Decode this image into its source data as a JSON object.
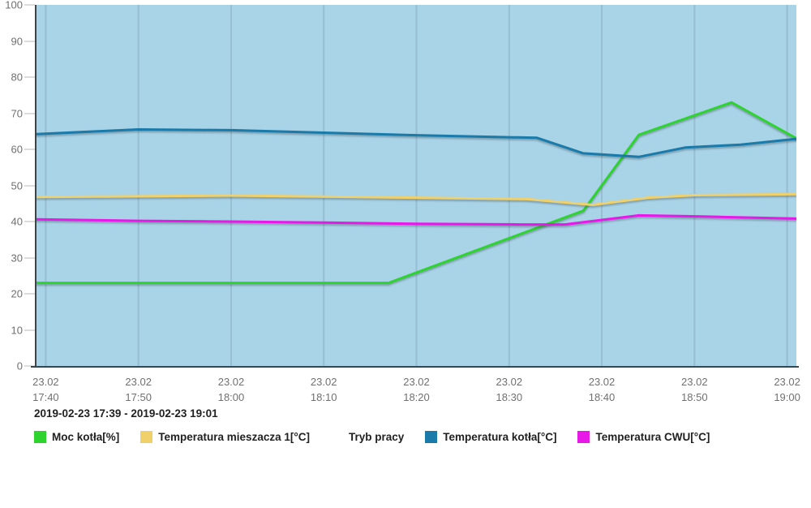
{
  "chart": {
    "subtitle_range": "2019-02-23 17:39 - 2019-02-23 19:01"
  },
  "chart_data": {
    "type": "line",
    "title": "",
    "xlabel": "",
    "ylabel": "",
    "x_start": "17:39",
    "x_end": "19:01",
    "x_unit": "minutes since 17:39",
    "x_total_minutes": 82,
    "ylim": [
      0,
      100
    ],
    "grid": "vertical-only",
    "legend_position": "bottom",
    "plot_bg": "#a9d3e7",
    "grid_color": "#97bed1",
    "axis_color": "#37474f",
    "tick_text_color": "#707070",
    "label_text_color": "#212121",
    "y_ticks": [
      0,
      10,
      20,
      30,
      40,
      50,
      60,
      70,
      80,
      90,
      100
    ],
    "x_ticks": [
      {
        "t": 1,
        "date": "23.02",
        "time": "17:40"
      },
      {
        "t": 11,
        "date": "23.02",
        "time": "17:50"
      },
      {
        "t": 21,
        "date": "23.02",
        "time": "18:00"
      },
      {
        "t": 31,
        "date": "23.02",
        "time": "18:10"
      },
      {
        "t": 41,
        "date": "23.02",
        "time": "18:20"
      },
      {
        "t": 51,
        "date": "23.02",
        "time": "18:30"
      },
      {
        "t": 61,
        "date": "23.02",
        "time": "18:40"
      },
      {
        "t": 71,
        "date": "23.02",
        "time": "18:50"
      },
      {
        "t": 81,
        "date": "23.02",
        "time": "19:00"
      }
    ],
    "series": [
      {
        "name": "Moc kotła[%]",
        "color": "#2ed32e",
        "points": [
          [
            0,
            23
          ],
          [
            38,
            23
          ],
          [
            59,
            43
          ],
          [
            65,
            64
          ],
          [
            75,
            73
          ],
          [
            82,
            63
          ]
        ]
      },
      {
        "name": "Temperatura mieszacza 1[°C]",
        "color": "#f0d06a",
        "points": [
          [
            0,
            46.8
          ],
          [
            11,
            47.0
          ],
          [
            21,
            47.2
          ],
          [
            31,
            46.9
          ],
          [
            41,
            46.6
          ],
          [
            53,
            46.2
          ],
          [
            60,
            44.6
          ],
          [
            66,
            46.6
          ],
          [
            71,
            47.3
          ],
          [
            82,
            47.6
          ]
        ]
      },
      {
        "name": "Tryb pracy",
        "color": "#ffffff",
        "points": []
      },
      {
        "name": "Temperatura kotła[°C]",
        "color": "#1a7aaa",
        "points": [
          [
            0,
            64.2
          ],
          [
            11,
            65.5
          ],
          [
            21,
            65.3
          ],
          [
            31,
            64.6
          ],
          [
            41,
            63.9
          ],
          [
            54,
            63.2
          ],
          [
            59,
            58.9
          ],
          [
            65,
            57.9
          ],
          [
            70,
            60.5
          ],
          [
            76,
            61.3
          ],
          [
            82,
            62.9
          ]
        ]
      },
      {
        "name": "Temperatura CWU[°C]",
        "color": "#e818e8",
        "points": [
          [
            0,
            40.6
          ],
          [
            11,
            40.2
          ],
          [
            21,
            40.0
          ],
          [
            31,
            39.7
          ],
          [
            41,
            39.4
          ],
          [
            53,
            39.2
          ],
          [
            57,
            39.2
          ],
          [
            65,
            41.7
          ],
          [
            72,
            41.4
          ],
          [
            82,
            40.8
          ]
        ]
      }
    ]
  }
}
